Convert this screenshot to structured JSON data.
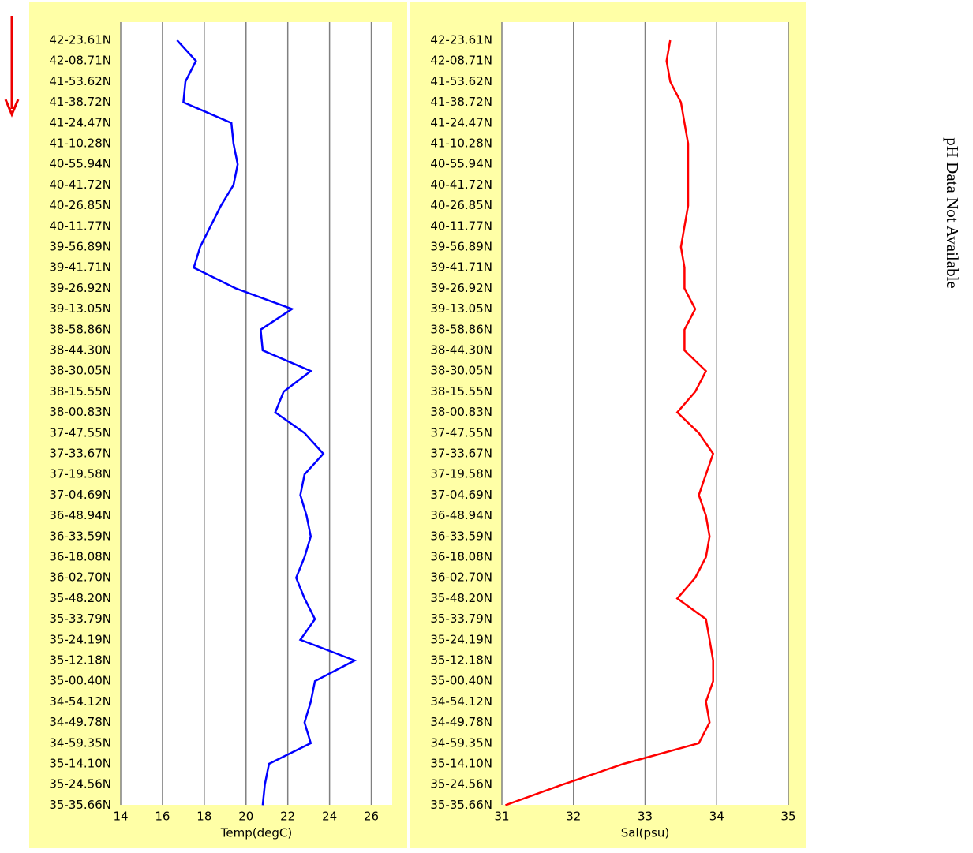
{
  "chart_data": [
    {
      "type": "line",
      "xlabel": "Temp(degC)",
      "color": "#0000ff",
      "xlim": [
        14,
        27
      ],
      "xticks": [
        14,
        16,
        18,
        20,
        22,
        24,
        26
      ],
      "grid": true,
      "categories": [
        "42-23.61N",
        "42-08.71N",
        "41-53.62N",
        "41-38.72N",
        "41-24.47N",
        "41-10.28N",
        "40-55.94N",
        "40-41.72N",
        "40-26.85N",
        "40-11.77N",
        "39-56.89N",
        "39-41.71N",
        "39-26.92N",
        "39-13.05N",
        "38-58.86N",
        "38-44.30N",
        "38-30.05N",
        "38-15.55N",
        "38-00.83N",
        "37-47.55N",
        "37-33.67N",
        "37-19.58N",
        "37-04.69N",
        "36-48.94N",
        "36-33.59N",
        "36-18.08N",
        "36-02.70N",
        "35-48.20N",
        "35-33.79N",
        "35-24.19N",
        "35-12.18N",
        "35-00.40N",
        "34-54.12N",
        "34-49.78N",
        "34-59.35N",
        "35-14.10N",
        "35-24.56N",
        "35-35.66N"
      ],
      "values": [
        16.7,
        17.6,
        17.1,
        17.0,
        19.3,
        19.4,
        19.6,
        19.4,
        18.8,
        18.3,
        17.8,
        17.5,
        19.5,
        22.2,
        20.7,
        20.8,
        23.1,
        21.8,
        21.4,
        22.8,
        23.7,
        22.8,
        22.6,
        22.9,
        23.1,
        22.8,
        22.4,
        22.8,
        23.3,
        22.6,
        25.2,
        23.3,
        23.1,
        22.8,
        23.1,
        21.1,
        20.9,
        20.8
      ]
    },
    {
      "type": "line",
      "xlabel": "Sal(psu)",
      "color": "#ff0000",
      "xlim": [
        31,
        35
      ],
      "xticks": [
        31,
        32,
        33,
        34,
        35
      ],
      "grid": true,
      "categories": [
        "42-23.61N",
        "42-08.71N",
        "41-53.62N",
        "41-38.72N",
        "41-24.47N",
        "41-10.28N",
        "40-55.94N",
        "40-41.72N",
        "40-26.85N",
        "40-11.77N",
        "39-56.89N",
        "39-41.71N",
        "39-26.92N",
        "39-13.05N",
        "38-58.86N",
        "38-44.30N",
        "38-30.05N",
        "38-15.55N",
        "38-00.83N",
        "37-47.55N",
        "37-33.67N",
        "37-19.58N",
        "37-04.69N",
        "36-48.94N",
        "36-33.59N",
        "36-18.08N",
        "36-02.70N",
        "35-48.20N",
        "35-33.79N",
        "35-24.19N",
        "35-12.18N",
        "35-00.40N",
        "34-54.12N",
        "34-49.78N",
        "34-59.35N",
        "35-14.10N",
        "35-24.56N",
        "35-35.66N"
      ],
      "values": [
        33.35,
        33.3,
        33.35,
        33.5,
        33.55,
        33.6,
        33.6,
        33.6,
        33.6,
        33.55,
        33.5,
        33.55,
        33.55,
        33.7,
        33.55,
        33.55,
        33.85,
        33.7,
        33.45,
        33.75,
        33.95,
        33.85,
        33.75,
        33.85,
        33.9,
        33.85,
        33.7,
        33.45,
        33.85,
        33.9,
        33.95,
        33.95,
        33.85,
        33.9,
        33.75,
        32.7,
        31.85,
        31.05
      ]
    }
  ],
  "note": "pH Data Not Available"
}
